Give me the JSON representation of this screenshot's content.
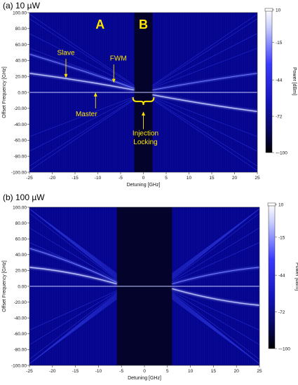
{
  "chart_data": [
    {
      "type": "heatmap",
      "title": "(a) 10 µW",
      "xlabel": "Detuning [GHz]",
      "ylabel": "Offset Frequency [GHz]",
      "xlim": [
        -25,
        25
      ],
      "ylim": [
        -100,
        100
      ],
      "x_ticks": [
        "-25",
        "-20",
        "-15",
        "-10",
        "-5",
        "0",
        "5",
        "10",
        "15",
        "20",
        "25"
      ],
      "y_ticks": [
        "100.00",
        "80.00",
        "60.00",
        "40.00",
        "20.00",
        "0.00",
        "-20.00",
        "-40.00",
        "-60.00",
        "-80.00",
        "-100.00"
      ],
      "locking_range": [
        -2,
        2
      ],
      "slave_line": [
        [
          -25,
          24
        ],
        [
          -2,
          3
        ]
      ],
      "fwm_line": [
        [
          -25,
          48
        ],
        [
          -2,
          5
        ]
      ],
      "slave_line_right": [
        [
          2,
          -3
        ],
        [
          25,
          -24
        ]
      ],
      "fwm_line_right": [
        [
          2,
          3
        ],
        [
          25,
          24
        ]
      ],
      "colorbar": {
        "label": "Power [dBm]",
        "ticks": [
          "10",
          "-15",
          "-44",
          "-72",
          "-100"
        ],
        "range": [
          -100,
          10
        ]
      },
      "annotations": [
        "A",
        "B",
        "Slave",
        "FWM",
        "Master",
        "Injection",
        "Locking"
      ]
    },
    {
      "type": "heatmap",
      "title": "(b) 100 µW",
      "xlabel": "Detuning [GHz]",
      "ylabel": "Offset Frequency [GHz]",
      "xlim": [
        -25,
        25
      ],
      "ylim": [
        -100,
        100
      ],
      "x_ticks": [
        "-25",
        "-20",
        "-15",
        "-10",
        "-5",
        "0",
        "5",
        "10",
        "15",
        "20",
        "25"
      ],
      "y_ticks": [
        "100.00",
        "80.00",
        "60.00",
        "40.00",
        "20.00",
        "0.00",
        "-20.00",
        "-40.00",
        "-60.00",
        "-80.00",
        "-100.00"
      ],
      "locking_range": [
        -6,
        6
      ],
      "slave_line": [
        [
          -25,
          24
        ],
        [
          -6,
          3
        ]
      ],
      "fwm_line": [
        [
          -25,
          48
        ],
        [
          -6,
          5
        ]
      ],
      "slave_line_right": [
        [
          6,
          -3
        ],
        [
          25,
          -24
        ]
      ],
      "fwm_line_right": [
        [
          6,
          3
        ],
        [
          25,
          24
        ]
      ],
      "colorbar": {
        "label": "Power [dBm]",
        "ticks": [
          "10",
          "-15",
          "-44",
          "-72",
          "-100"
        ],
        "range": [
          -100,
          10
        ]
      }
    }
  ]
}
